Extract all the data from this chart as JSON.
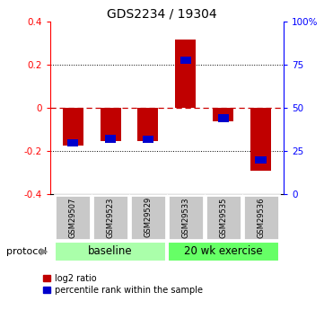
{
  "title": "GDS2234 / 19304",
  "samples": [
    "GSM29507",
    "GSM29523",
    "GSM29529",
    "GSM29533",
    "GSM29535",
    "GSM29536"
  ],
  "log2_ratios": [
    -0.175,
    -0.155,
    -0.155,
    0.315,
    -0.065,
    -0.295
  ],
  "percentile_rank_values": [
    29.5,
    32.0,
    31.5,
    77.5,
    44.0,
    19.5
  ],
  "ylim": [
    -0.4,
    0.4
  ],
  "yticks": [
    -0.4,
    -0.2,
    0.0,
    0.2,
    0.4
  ],
  "ytick_labels_left": [
    "-0.4",
    "-0.2",
    "0",
    "0.2",
    "0.4"
  ],
  "ytick_labels_right": [
    "0",
    "25",
    "50",
    "75",
    "100%"
  ],
  "baseline_label": "baseline",
  "exercise_label": "20 wk exercise",
  "protocol_label": "protocol",
  "legend_log2": "log2 ratio",
  "legend_pct": "percentile rank within the sample",
  "bar_color_red": "#C00000",
  "bar_color_blue": "#0000CC",
  "baseline_color": "#AAFFAA",
  "exercise_color": "#66FF66",
  "sample_box_color": "#C8C8C8",
  "bar_width": 0.55,
  "blue_bar_width": 0.3,
  "blue_bar_height": 0.035,
  "dotted_line_color": "#000000",
  "zero_line_color": "#CC0000",
  "background_color": "#FFFFFF"
}
